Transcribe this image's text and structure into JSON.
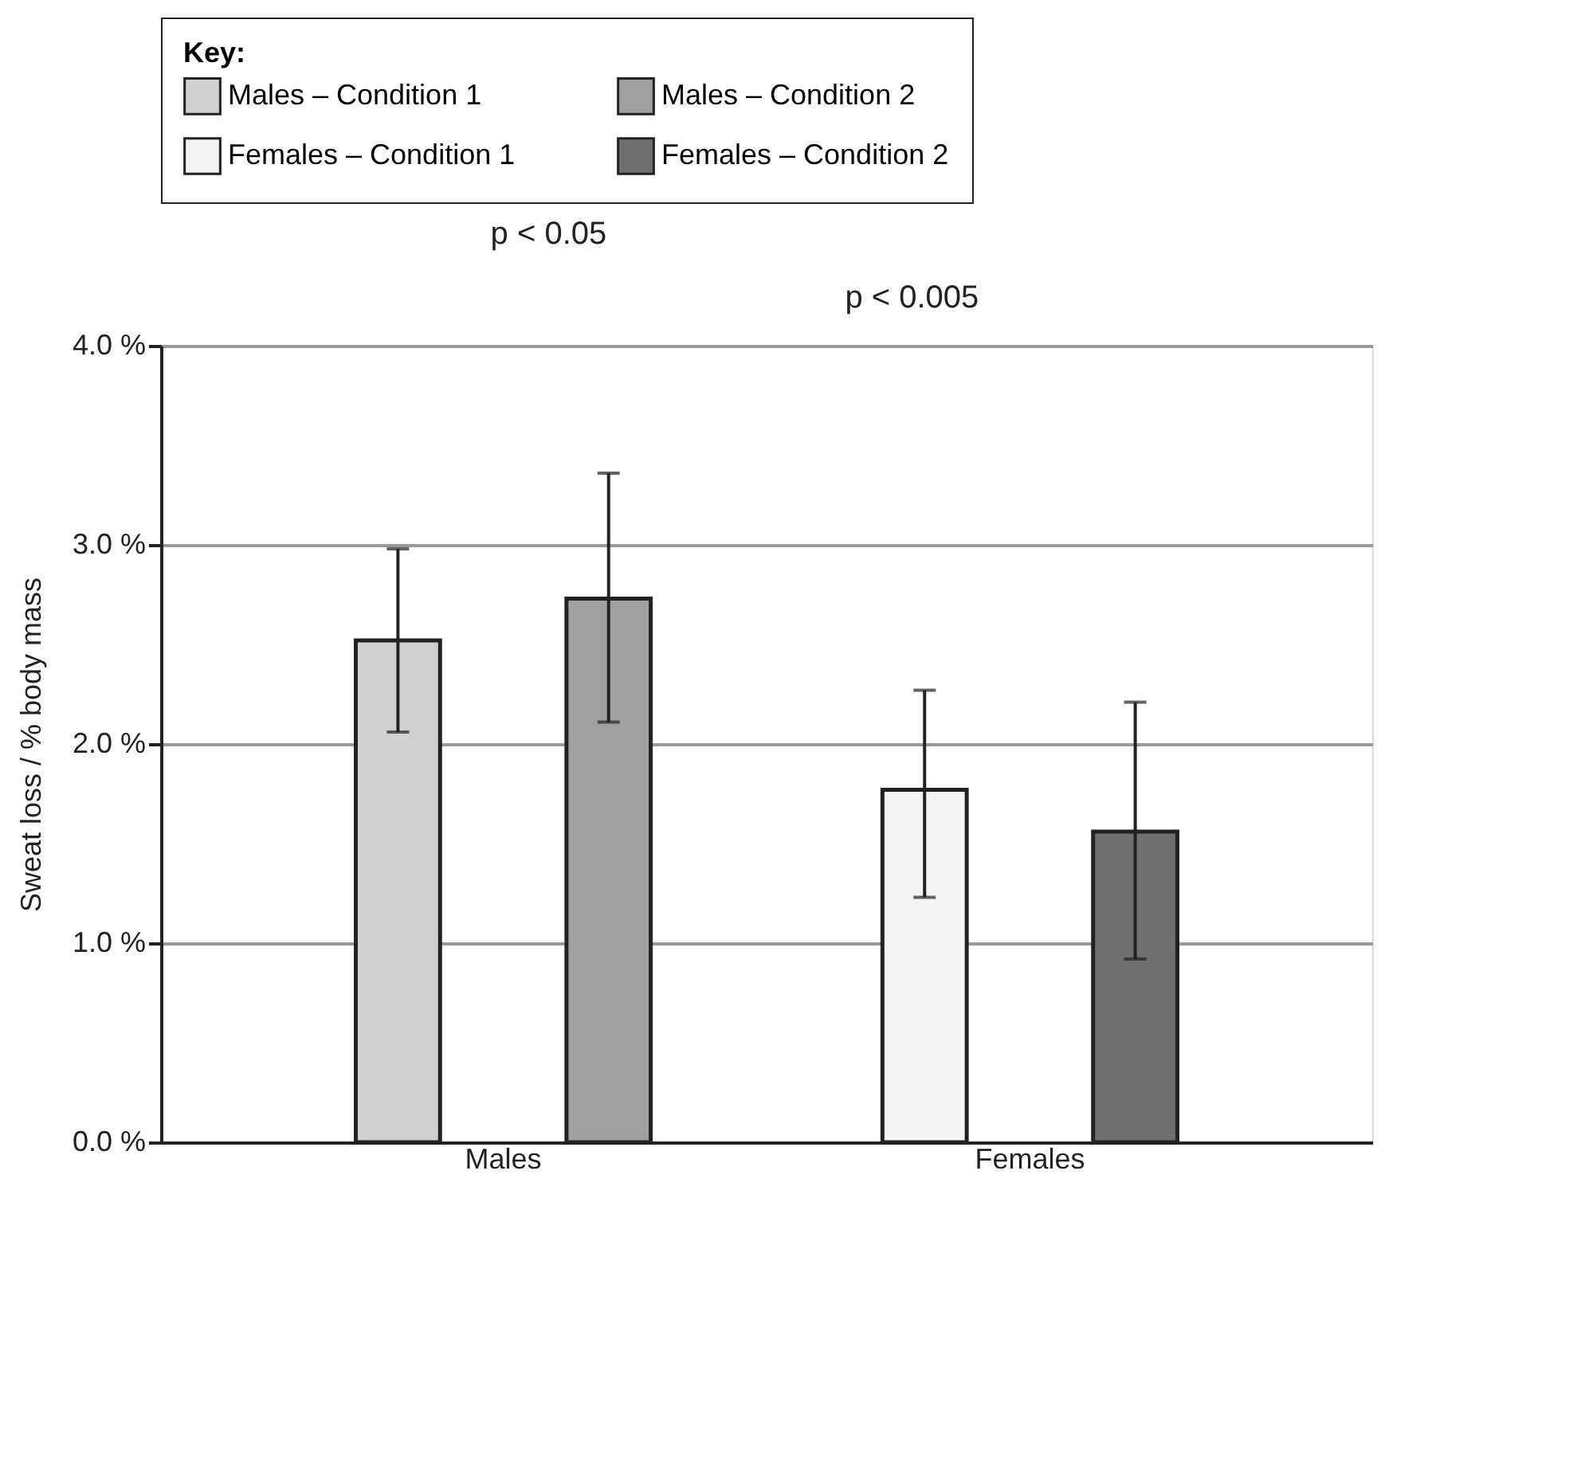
{
  "chart_data": {
    "type": "bar",
    "ylabel": "Sweat loss / % body mass",
    "legend_title": "Key:",
    "categories": [
      "Males",
      "Females"
    ],
    "series": [
      {
        "name": "Males – Condition 1",
        "color": "#d0d0d0",
        "values": [
          2.52,
          null
        ],
        "errors": [
          [
            2.06,
            2.98
          ],
          null
        ]
      },
      {
        "name": "Males – Condition 2",
        "color": "#a0a0a0",
        "values": [
          2.73,
          null
        ],
        "errors": [
          [
            2.11,
            3.36
          ],
          null
        ]
      },
      {
        "name": "Females – Condition 1",
        "color": "#f4f4f4",
        "values": [
          null,
          1.77
        ],
        "errors": [
          null,
          [
            1.23,
            2.27
          ]
        ]
      },
      {
        "name": "Females – Condition 2",
        "color": "#707070",
        "values": [
          null,
          1.56
        ],
        "errors": [
          null,
          [
            0.92,
            2.21
          ]
        ]
      }
    ],
    "ylim": [
      0,
      4.0
    ],
    "yticks": [
      {
        "value": 0,
        "label": "0.0 %"
      },
      {
        "value": 1,
        "label": "1.0 %"
      },
      {
        "value": 2,
        "label": "2.0 %"
      },
      {
        "value": 3,
        "label": "3.0 %"
      },
      {
        "value": 4,
        "label": "4.0 %"
      }
    ],
    "grid": "y",
    "legend": "top",
    "annotations": [
      "p < 0.05",
      "p < 0.005"
    ]
  }
}
